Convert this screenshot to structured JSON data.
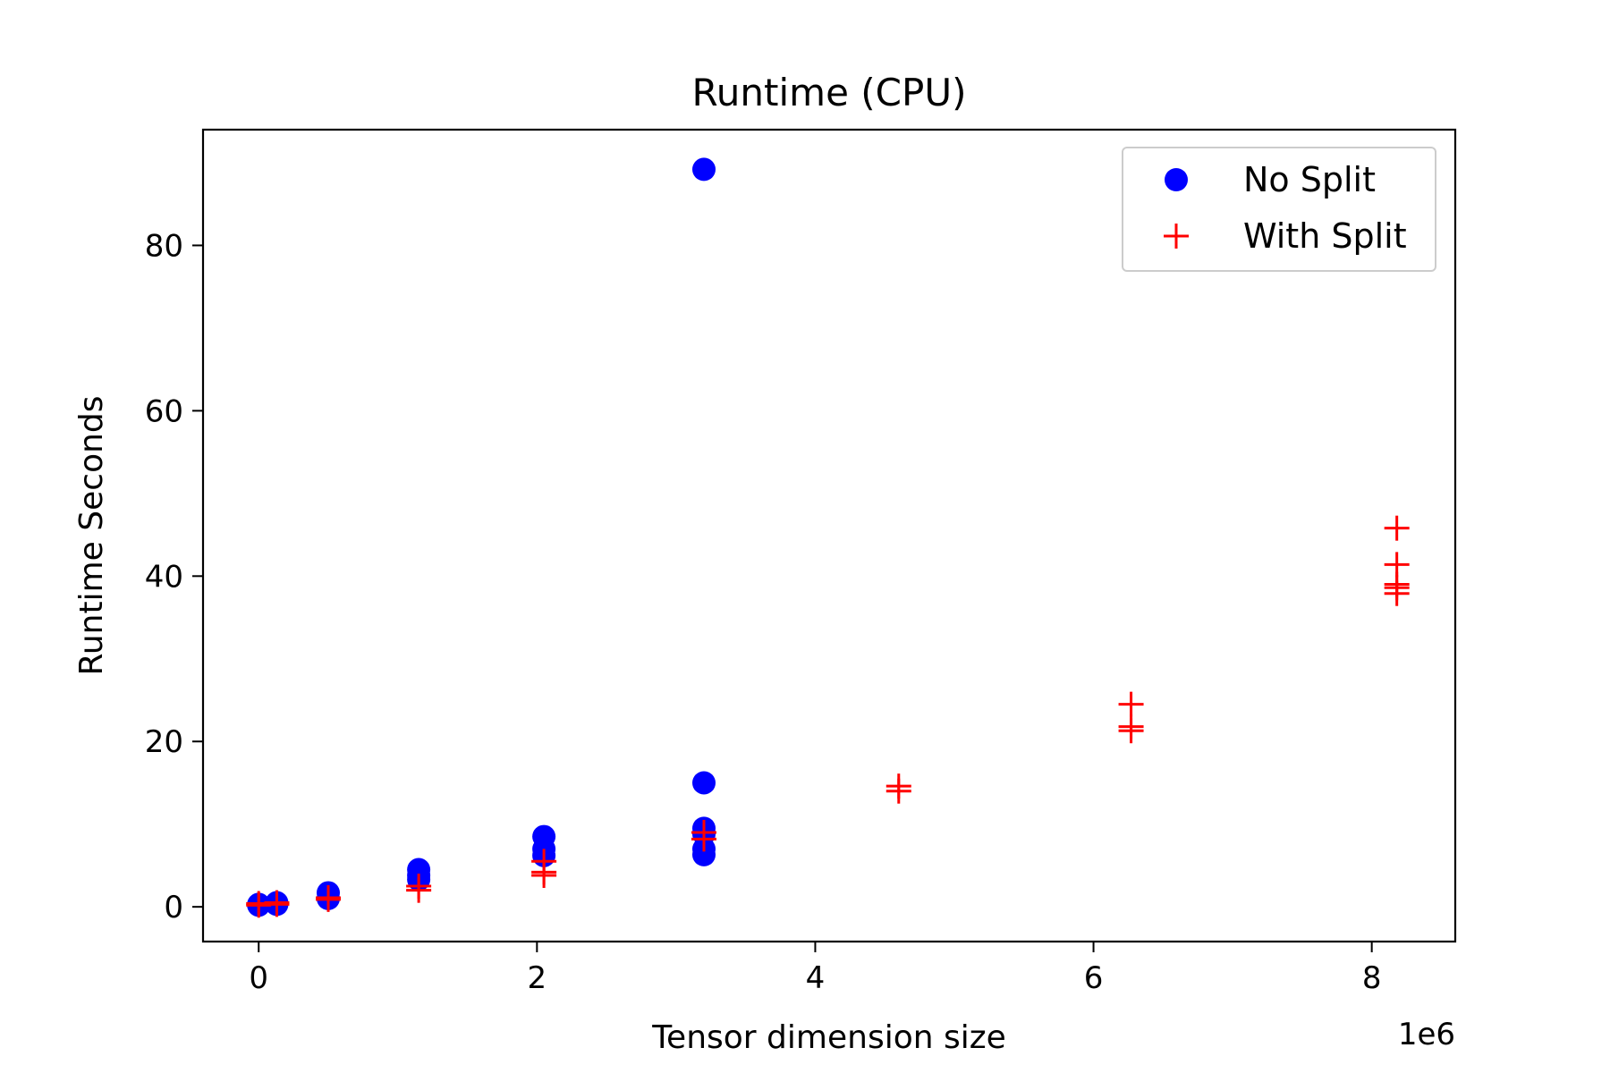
{
  "chart_data": {
    "type": "scatter",
    "title": "Runtime (CPU)",
    "xlabel": "Tensor dimension size",
    "ylabel": "Runtime Seconds",
    "x_offset_label": "1e6",
    "x_scale": 1000000,
    "xlim": [
      -0.4,
      8.6
    ],
    "ylim": [
      -4.2,
      94.0
    ],
    "xticks": [
      0,
      2,
      4,
      6,
      8
    ],
    "yticks": [
      0,
      20,
      40,
      60,
      80
    ],
    "grid": false,
    "legend_position": "top-right",
    "series": [
      {
        "name": "No Split",
        "marker": "circle",
        "color": "#0000ff",
        "points": [
          {
            "x": 0.0,
            "y": 0.2
          },
          {
            "x": 0.0,
            "y": 0.3
          },
          {
            "x": 0.13,
            "y": 0.3
          },
          {
            "x": 0.13,
            "y": 0.5
          },
          {
            "x": 0.5,
            "y": 1.0
          },
          {
            "x": 0.5,
            "y": 1.7
          },
          {
            "x": 1.15,
            "y": 3.3
          },
          {
            "x": 1.15,
            "y": 3.8
          },
          {
            "x": 1.15,
            "y": 4.5
          },
          {
            "x": 2.05,
            "y": 6.2
          },
          {
            "x": 2.05,
            "y": 7.0
          },
          {
            "x": 2.05,
            "y": 8.5
          },
          {
            "x": 3.2,
            "y": 6.3
          },
          {
            "x": 3.2,
            "y": 7.0
          },
          {
            "x": 3.2,
            "y": 8.8
          },
          {
            "x": 3.2,
            "y": 9.5
          },
          {
            "x": 3.2,
            "y": 15.0
          },
          {
            "x": 3.2,
            "y": 89.2
          }
        ]
      },
      {
        "name": "With Split",
        "marker": "plus",
        "color": "#ff0000",
        "points": [
          {
            "x": 0.0,
            "y": 0.2
          },
          {
            "x": 0.0,
            "y": 0.4
          },
          {
            "x": 0.13,
            "y": 0.3
          },
          {
            "x": 0.13,
            "y": 0.5
          },
          {
            "x": 0.5,
            "y": 0.9
          },
          {
            "x": 0.5,
            "y": 1.1
          },
          {
            "x": 1.15,
            "y": 2.0
          },
          {
            "x": 1.15,
            "y": 2.5
          },
          {
            "x": 2.05,
            "y": 3.8
          },
          {
            "x": 2.05,
            "y": 4.2
          },
          {
            "x": 2.05,
            "y": 5.5
          },
          {
            "x": 3.2,
            "y": 8.2
          },
          {
            "x": 3.2,
            "y": 9.0
          },
          {
            "x": 4.6,
            "y": 14.0
          },
          {
            "x": 4.6,
            "y": 14.6
          },
          {
            "x": 6.27,
            "y": 21.3
          },
          {
            "x": 6.27,
            "y": 21.8
          },
          {
            "x": 6.27,
            "y": 24.5
          },
          {
            "x": 8.18,
            "y": 37.9
          },
          {
            "x": 8.18,
            "y": 38.6
          },
          {
            "x": 8.18,
            "y": 39.0
          },
          {
            "x": 8.18,
            "y": 41.4
          },
          {
            "x": 8.18,
            "y": 45.8
          }
        ]
      }
    ]
  }
}
